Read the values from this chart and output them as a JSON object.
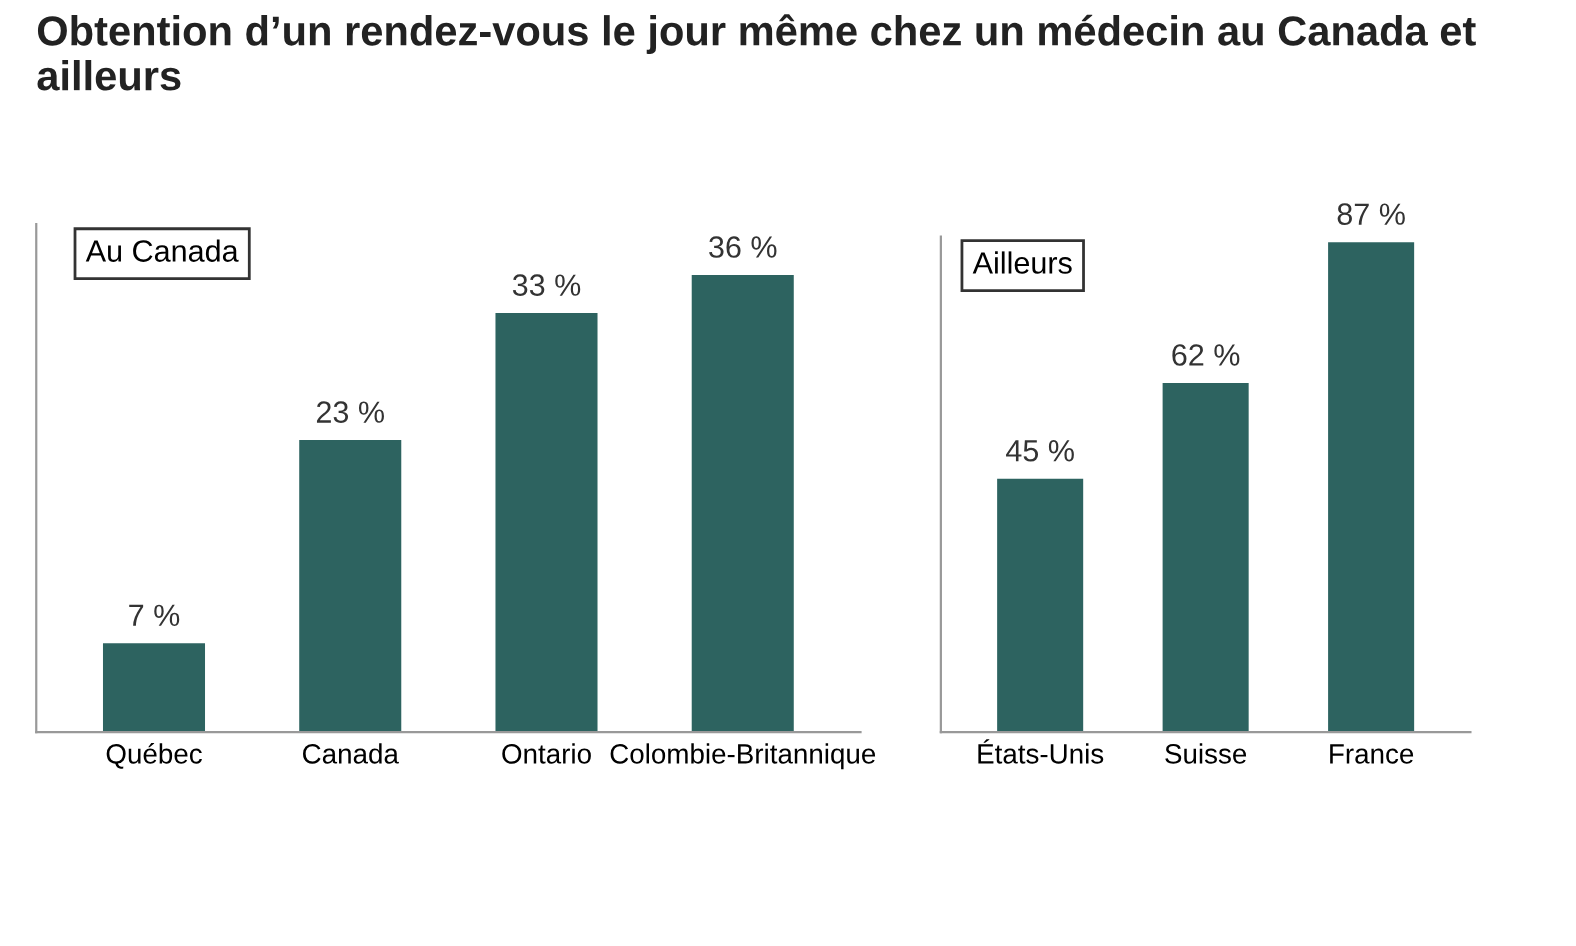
{
  "chart_data": [
    {
      "type": "bar",
      "title": "Obtention d’un rendez-vous le jour même chez un médecin au Canada et ailleurs",
      "subtitle": "Au Canada",
      "categories": [
        "Québec",
        "Canada",
        "Ontario",
        "Colombie-Britannique"
      ],
      "values": [
        7,
        23,
        33,
        36
      ],
      "value_labels": [
        "7 %",
        "23 %",
        "33 %",
        "36 %"
      ],
      "color": "#2d6360",
      "ylim": [
        0,
        40
      ],
      "tick_labels": "x",
      "grid": false
    },
    {
      "type": "bar",
      "subtitle": "Ailleurs",
      "categories": [
        "États-Unis",
        "Suisse",
        "France"
      ],
      "values": [
        45,
        62,
        87
      ],
      "value_labels": [
        "45 %",
        "62 %",
        "87 %"
      ],
      "color": "#2d6360",
      "ylim": [
        0,
        88
      ],
      "tick_labels": "x",
      "grid": false
    }
  ]
}
